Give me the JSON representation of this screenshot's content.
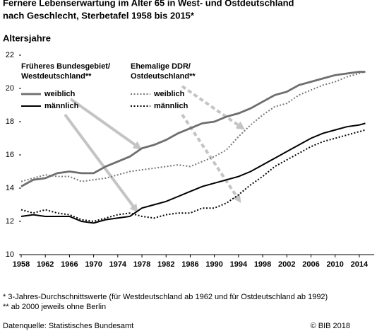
{
  "chart_data": {
    "type": "line",
    "title": [
      "Fernere Lebenserwartung im Alter 65 in West- und Ostdeutschland",
      "nach Geschlecht, Sterbetafel 1958 bis 2015*"
    ],
    "y_label": "Altersjahre",
    "x": [
      1958,
      1960,
      1962,
      1964,
      1966,
      1968,
      1970,
      1972,
      1974,
      1976,
      1978,
      1980,
      1982,
      1984,
      1986,
      1988,
      1990,
      1992,
      1994,
      1996,
      1998,
      2000,
      2002,
      2004,
      2006,
      2008,
      2010,
      2012,
      2014,
      2015
    ],
    "xlim": [
      1958,
      2016
    ],
    "xticks": [
      1958,
      1962,
      1966,
      1970,
      1974,
      1978,
      1982,
      1986,
      1990,
      1994,
      1998,
      2002,
      2006,
      2010,
      2014
    ],
    "ylim": [
      10,
      22
    ],
    "yticks": [
      10,
      12,
      14,
      16,
      18,
      20,
      22
    ],
    "legend_groups": [
      [
        "Früheres Bundesgebiet/",
        "Westdeutschland**"
      ],
      [
        "Ehemalige DDR/",
        "Ostdeutschland**"
      ]
    ],
    "series": [
      {
        "name": "weiblich",
        "color": "#6e6e6e",
        "style": "solid",
        "values": [
          14.1,
          14.5,
          14.6,
          14.9,
          15.0,
          14.9,
          14.9,
          15.3,
          15.6,
          15.9,
          16.4,
          16.6,
          16.9,
          17.3,
          17.6,
          17.9,
          18.0,
          18.3,
          18.5,
          18.8,
          19.2,
          19.6,
          19.8,
          20.2,
          20.4,
          20.6,
          20.8,
          20.9,
          21.0,
          21.0
        ]
      },
      {
        "name": "männlich",
        "color": "#000000",
        "style": "solid",
        "values": [
          12.3,
          12.4,
          12.3,
          12.3,
          12.3,
          12.0,
          11.9,
          12.1,
          12.2,
          12.3,
          12.8,
          13.0,
          13.2,
          13.5,
          13.8,
          14.1,
          14.3,
          14.5,
          14.7,
          15.0,
          15.4,
          15.8,
          16.2,
          16.6,
          17.0,
          17.3,
          17.5,
          17.7,
          17.8,
          17.9
        ]
      },
      {
        "name": "weiblich",
        "color": "#777777",
        "style": "dotted",
        "values": [
          14.4,
          14.6,
          14.8,
          14.7,
          14.7,
          14.4,
          14.5,
          14.6,
          14.8,
          15.0,
          15.1,
          15.2,
          15.3,
          15.4,
          15.3,
          15.6,
          15.9,
          16.3,
          17.1,
          17.8,
          18.4,
          18.9,
          19.1,
          19.6,
          19.9,
          20.2,
          20.4,
          20.7,
          20.9,
          21.0
        ]
      },
      {
        "name": "männlich",
        "color": "#000000",
        "style": "dotted",
        "values": [
          12.7,
          12.5,
          12.7,
          12.5,
          12.4,
          12.1,
          12.0,
          12.2,
          12.4,
          12.5,
          12.3,
          12.2,
          12.4,
          12.5,
          12.5,
          12.8,
          12.8,
          13.1,
          13.6,
          14.2,
          14.7,
          15.3,
          15.7,
          16.1,
          16.5,
          16.8,
          17.0,
          17.2,
          17.4,
          17.5
        ]
      }
    ],
    "footnotes": [
      "* 3-Jahres-Durchschnittswerte (für Westdeutschland ab 1962 und für Ostdeutschland ab 1992)",
      "** ab 2000 jeweils ohne Berlin"
    ],
    "source": "Datenquelle: Statistisches Bundesamt",
    "credit": "© BIB 2018"
  }
}
